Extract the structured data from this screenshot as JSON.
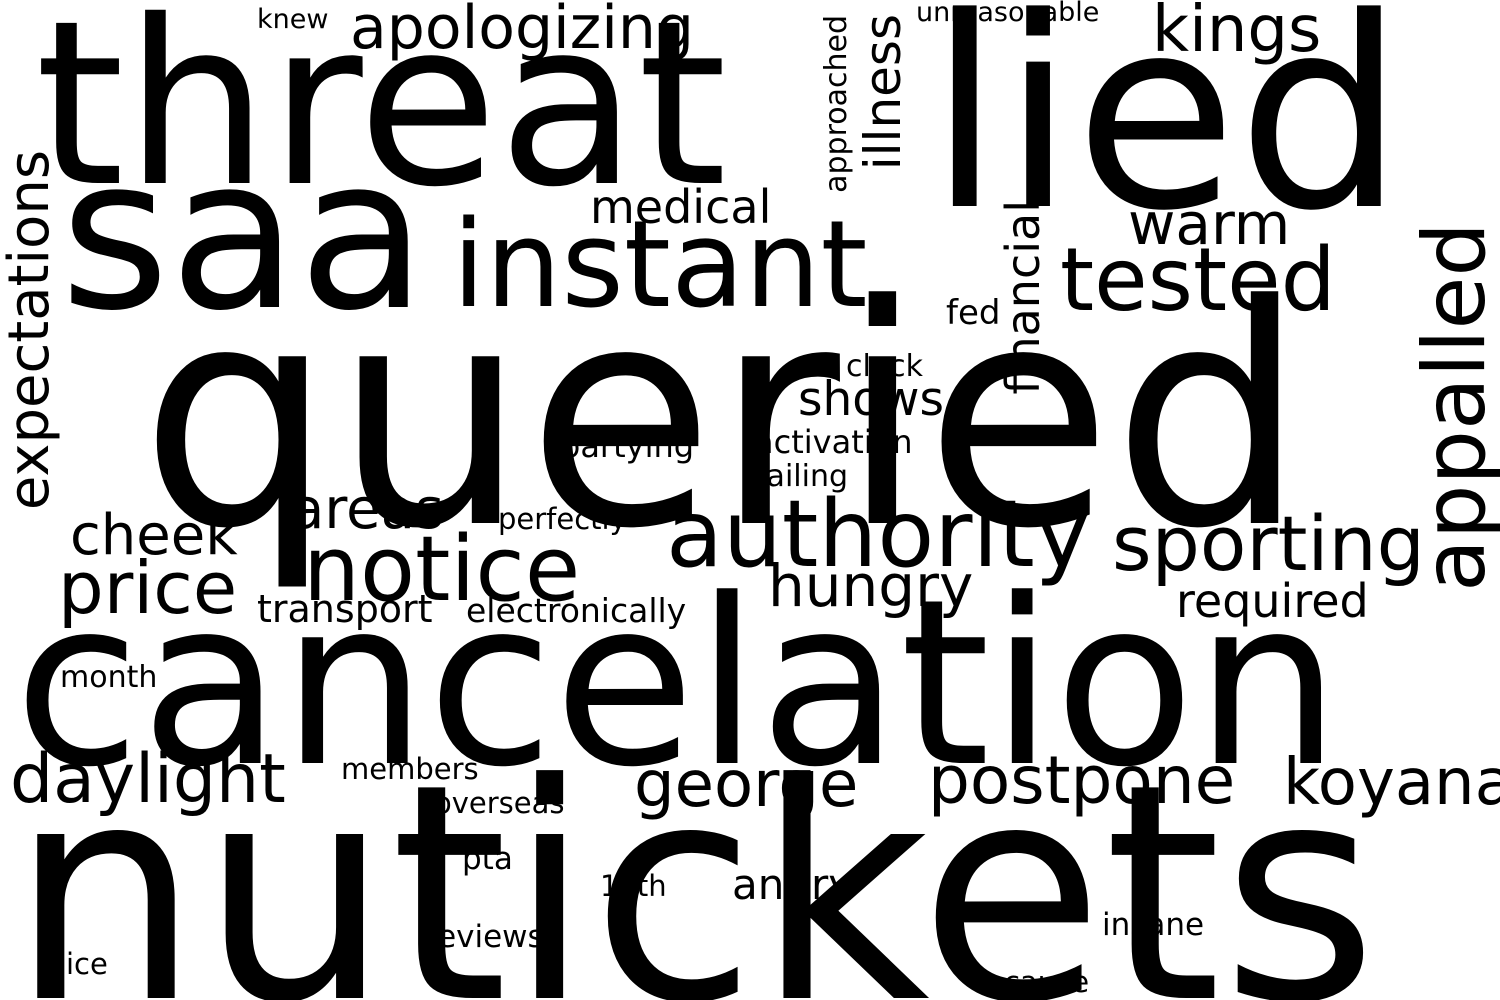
{
  "colors": {
    "background": "#ffffff",
    "text": "#000000"
  },
  "words": [
    {
      "text": "queried"
    },
    {
      "text": "nutickets"
    },
    {
      "text": "cancelation"
    },
    {
      "text": "threat"
    },
    {
      "text": "saa"
    },
    {
      "text": "lied"
    },
    {
      "text": "instant"
    },
    {
      "text": "authority"
    },
    {
      "text": "notice"
    },
    {
      "text": "tested"
    },
    {
      "text": "appalled"
    },
    {
      "text": "sporting"
    },
    {
      "text": "expectations"
    },
    {
      "text": "price"
    },
    {
      "text": "daylight"
    },
    {
      "text": "postpone"
    },
    {
      "text": "koyana"
    },
    {
      "text": "george"
    },
    {
      "text": "apologizing"
    },
    {
      "text": "kings"
    },
    {
      "text": "illness"
    },
    {
      "text": "warm"
    },
    {
      "text": "hungry"
    },
    {
      "text": "cheek"
    },
    {
      "text": "areas"
    },
    {
      "text": "medical"
    },
    {
      "text": "financial"
    },
    {
      "text": "required"
    },
    {
      "text": "shows"
    },
    {
      "text": "angry"
    },
    {
      "text": "transport"
    },
    {
      "text": "electronically"
    },
    {
      "text": "approached"
    },
    {
      "text": "fed"
    },
    {
      "text": "activation"
    },
    {
      "text": "partying"
    },
    {
      "text": "clock"
    },
    {
      "text": "failing"
    },
    {
      "text": "perfectly"
    },
    {
      "text": "unreasonable"
    },
    {
      "text": "knew"
    },
    {
      "text": "month"
    },
    {
      "text": "members"
    },
    {
      "text": "overseas"
    },
    {
      "text": "pta"
    },
    {
      "text": "14th"
    },
    {
      "text": "insane"
    },
    {
      "text": "reviews"
    },
    {
      "text": "ice"
    },
    {
      "text": "cause"
    }
  ]
}
